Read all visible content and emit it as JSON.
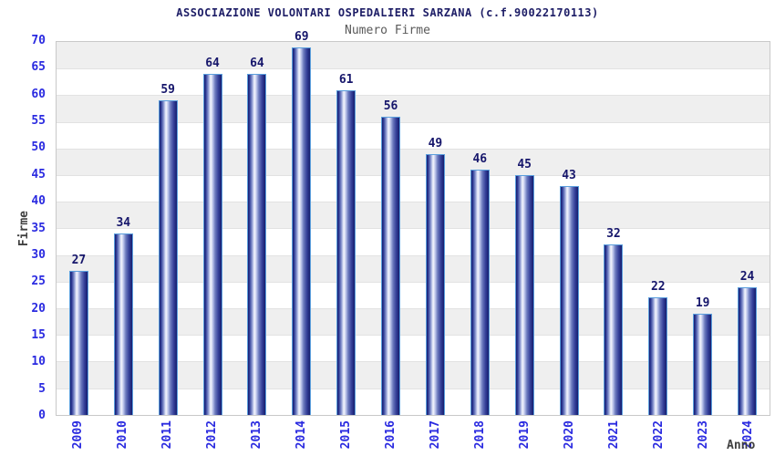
{
  "chart_data": {
    "type": "bar",
    "title": "ASSOCIAZIONE VOLONTARI OSPEDALIERI SARZANA (c.f.90022170113)",
    "subtitle": "Numero Firme",
    "categories": [
      "2009",
      "2010",
      "2011",
      "2012",
      "2013",
      "2014",
      "2015",
      "2016",
      "2017",
      "2018",
      "2019",
      "2020",
      "2021",
      "2022",
      "2023",
      "2024"
    ],
    "values": [
      27,
      34,
      59,
      64,
      64,
      69,
      61,
      56,
      49,
      46,
      45,
      43,
      32,
      22,
      19,
      24
    ],
    "xlabel": "Anno",
    "ylabel": "Firme",
    "ylim": [
      0,
      70
    ],
    "ytick_step": 5,
    "yticks": [
      0,
      5,
      10,
      15,
      20,
      25,
      30,
      35,
      40,
      45,
      50,
      55,
      60,
      65,
      70
    ],
    "legend": "none",
    "grid": "horizontal alternating bands every 5 units",
    "colors": {
      "band_gray": "#efefef",
      "band_white": "#ffffff",
      "gridline": "#e2e2e2",
      "plot_border": "#c9c9c9",
      "tick_label_blue": "#2a2ae0",
      "value_label_navy": "#16166b",
      "title_navy": "#1d1d66",
      "subtitle_gray": "#5a5a5a",
      "axis_title_gray": "#404040",
      "bar_dark": "#161d6e",
      "bar_light": "#f2f4fc",
      "bar_border": "#5b9fdd"
    }
  }
}
